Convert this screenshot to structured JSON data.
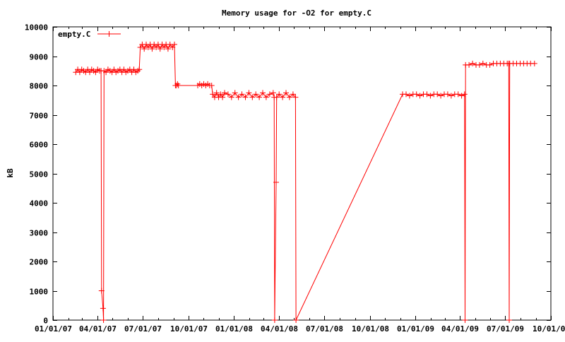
{
  "chart_data": {
    "type": "line",
    "title": "Memory usage for -O2 for empty.C",
    "xlabel": "",
    "ylabel": "kB",
    "xlim": [
      "2007-01-01",
      "2009-10-01"
    ],
    "ylim": [
      0,
      10000
    ],
    "x_ticks": [
      "01/01/07",
      "04/01/07",
      "07/01/07",
      "10/01/07",
      "01/01/08",
      "04/01/08",
      "07/01/08",
      "10/01/08",
      "01/01/09",
      "04/01/09",
      "07/01/09",
      "10/01/09"
    ],
    "x_tick_dates": [
      "2007-01-01",
      "2007-04-01",
      "2007-07-01",
      "2007-10-01",
      "2008-01-01",
      "2008-04-01",
      "2008-07-01",
      "2008-10-01",
      "2009-01-01",
      "2009-04-01",
      "2009-07-01",
      "2009-10-01"
    ],
    "y_ticks": [
      0,
      1000,
      2000,
      3000,
      4000,
      5000,
      6000,
      7000,
      8000,
      9000,
      10000
    ],
    "grid": false,
    "legend": "top-left",
    "series_color": "#ff0000",
    "series": [
      {
        "name": "empty.C",
        "marker": "plus",
        "points": [
          [
            "2007-02-16",
            8450
          ],
          [
            "2007-02-20",
            8550
          ],
          [
            "2007-02-24",
            8450
          ],
          [
            "2007-02-28",
            8550
          ],
          [
            "2007-03-04",
            8500
          ],
          [
            "2007-03-08",
            8450
          ],
          [
            "2007-03-12",
            8550
          ],
          [
            "2007-03-16",
            8450
          ],
          [
            "2007-03-20",
            8550
          ],
          [
            "2007-03-24",
            8500
          ],
          [
            "2007-03-28",
            8450
          ],
          [
            "2007-04-01",
            8550
          ],
          [
            "2007-04-05",
            8500
          ],
          [
            "2007-04-08",
            8500
          ],
          [
            "2007-04-09",
            1000
          ],
          [
            "2007-04-12",
            400
          ],
          [
            "2007-04-13",
            0
          ],
          [
            "2007-04-14",
            8500
          ],
          [
            "2007-04-18",
            8450
          ],
          [
            "2007-04-22",
            8550
          ],
          [
            "2007-04-26",
            8500
          ],
          [
            "2007-04-30",
            8450
          ],
          [
            "2007-05-04",
            8550
          ],
          [
            "2007-05-08",
            8450
          ],
          [
            "2007-05-12",
            8500
          ],
          [
            "2007-05-16",
            8550
          ],
          [
            "2007-05-20",
            8450
          ],
          [
            "2007-05-24",
            8550
          ],
          [
            "2007-05-28",
            8450
          ],
          [
            "2007-06-01",
            8500
          ],
          [
            "2007-06-05",
            8550
          ],
          [
            "2007-06-09",
            8450
          ],
          [
            "2007-06-13",
            8550
          ],
          [
            "2007-06-17",
            8450
          ],
          [
            "2007-06-21",
            8500
          ],
          [
            "2007-06-24",
            8550
          ],
          [
            "2007-06-26",
            9300
          ],
          [
            "2007-06-30",
            9400
          ],
          [
            "2007-07-04",
            9250
          ],
          [
            "2007-07-08",
            9400
          ],
          [
            "2007-07-12",
            9300
          ],
          [
            "2007-07-16",
            9400
          ],
          [
            "2007-07-20",
            9250
          ],
          [
            "2007-07-24",
            9400
          ],
          [
            "2007-07-28",
            9300
          ],
          [
            "2007-08-01",
            9400
          ],
          [
            "2007-08-05",
            9250
          ],
          [
            "2007-08-09",
            9400
          ],
          [
            "2007-08-13",
            9300
          ],
          [
            "2007-08-17",
            9400
          ],
          [
            "2007-08-21",
            9250
          ],
          [
            "2007-08-25",
            9400
          ],
          [
            "2007-08-30",
            9300
          ],
          [
            "2007-09-03",
            9400
          ],
          [
            "2007-09-05",
            8000
          ],
          [
            "2007-09-07",
            8000
          ],
          [
            "2007-09-09",
            8050
          ],
          [
            "2007-09-11",
            8000
          ],
          [
            "2007-10-20",
            8000
          ],
          [
            "2007-10-24",
            8050
          ],
          [
            "2007-10-28",
            8000
          ],
          [
            "2007-11-01",
            8050
          ],
          [
            "2007-11-05",
            8000
          ],
          [
            "2007-11-09",
            8050
          ],
          [
            "2007-11-13",
            8000
          ],
          [
            "2007-11-17",
            8000
          ],
          [
            "2007-11-19",
            7700
          ],
          [
            "2007-11-23",
            7600
          ],
          [
            "2007-11-27",
            7750
          ],
          [
            "2007-12-01",
            7600
          ],
          [
            "2007-12-05",
            7700
          ],
          [
            "2007-12-09",
            7600
          ],
          [
            "2007-12-13",
            7750
          ],
          [
            "2007-12-20",
            7700
          ],
          [
            "2007-12-27",
            7600
          ],
          [
            "2008-01-03",
            7750
          ],
          [
            "2008-01-10",
            7600
          ],
          [
            "2008-01-17",
            7700
          ],
          [
            "2008-01-24",
            7600
          ],
          [
            "2008-01-31",
            7750
          ],
          [
            "2008-02-07",
            7600
          ],
          [
            "2008-02-14",
            7700
          ],
          [
            "2008-02-21",
            7600
          ],
          [
            "2008-02-28",
            7750
          ],
          [
            "2008-03-06",
            7600
          ],
          [
            "2008-03-13",
            7700
          ],
          [
            "2008-03-20",
            7750
          ],
          [
            "2008-03-22",
            7600
          ],
          [
            "2008-03-23",
            0
          ],
          [
            "2008-03-26",
            4700
          ],
          [
            "2008-03-27",
            7600
          ],
          [
            "2008-04-01",
            7700
          ],
          [
            "2008-04-08",
            7600
          ],
          [
            "2008-04-15",
            7750
          ],
          [
            "2008-04-22",
            7600
          ],
          [
            "2008-04-29",
            7700
          ],
          [
            "2008-05-04",
            7600
          ],
          [
            "2008-05-05",
            0
          ],
          [
            "2008-12-06",
            7700
          ],
          [
            "2008-12-13",
            7700
          ],
          [
            "2008-12-20",
            7650
          ],
          [
            "2008-12-27",
            7700
          ],
          [
            "2009-01-03",
            7700
          ],
          [
            "2009-01-10",
            7650
          ],
          [
            "2009-01-17",
            7700
          ],
          [
            "2009-01-24",
            7700
          ],
          [
            "2009-01-31",
            7650
          ],
          [
            "2009-02-07",
            7700
          ],
          [
            "2009-02-14",
            7700
          ],
          [
            "2009-02-21",
            7650
          ],
          [
            "2009-02-28",
            7700
          ],
          [
            "2009-03-07",
            7700
          ],
          [
            "2009-03-14",
            7650
          ],
          [
            "2009-03-21",
            7700
          ],
          [
            "2009-03-28",
            7700
          ],
          [
            "2009-04-04",
            7650
          ],
          [
            "2009-04-10",
            7700
          ],
          [
            "2009-04-11",
            0
          ],
          [
            "2009-04-12",
            8700
          ],
          [
            "2009-04-19",
            8700
          ],
          [
            "2009-04-26",
            8750
          ],
          [
            "2009-05-03",
            8700
          ],
          [
            "2009-05-10",
            8700
          ],
          [
            "2009-05-17",
            8750
          ],
          [
            "2009-05-24",
            8700
          ],
          [
            "2009-05-31",
            8700
          ],
          [
            "2009-06-07",
            8750
          ],
          [
            "2009-06-14",
            8750
          ],
          [
            "2009-06-21",
            8750
          ],
          [
            "2009-06-28",
            8750
          ],
          [
            "2009-07-05",
            8750
          ],
          [
            "2009-07-08",
            8750
          ],
          [
            "2009-07-09",
            0
          ],
          [
            "2009-07-10",
            8750
          ],
          [
            "2009-07-17",
            8750
          ],
          [
            "2009-07-24",
            8750
          ],
          [
            "2009-07-31",
            8750
          ],
          [
            "2009-08-07",
            8750
          ],
          [
            "2009-08-14",
            8750
          ],
          [
            "2009-08-21",
            8750
          ],
          [
            "2009-08-29",
            8750
          ]
        ]
      }
    ]
  }
}
